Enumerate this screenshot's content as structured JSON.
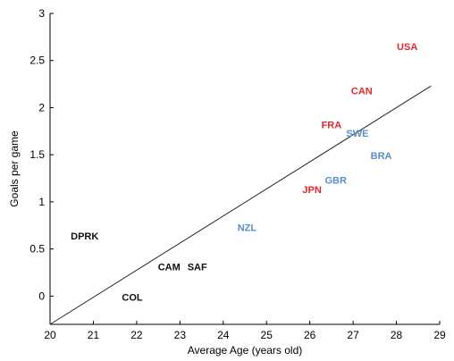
{
  "chart_data": {
    "type": "scatter",
    "title": "",
    "xlabel": "Average Age (years old)",
    "ylabel": "Goals per game",
    "xlim": [
      20,
      29
    ],
    "ylim": [
      -0.3,
      3
    ],
    "xticks": [
      20,
      21,
      22,
      23,
      24,
      25,
      26,
      27,
      28,
      29
    ],
    "yticks": [
      0,
      0.5,
      1,
      1.5,
      2,
      2.5,
      3
    ],
    "ytick_labels": [
      "0",
      "0.5",
      "1",
      "1.5",
      "2",
      "2.5",
      "3"
    ],
    "grid": false,
    "colors": {
      "red": "#e3262a",
      "blue": "#5b8ec6",
      "black": "#111111"
    },
    "points": [
      {
        "label": "USA",
        "x": 28.25,
        "y": 2.65,
        "color": "red"
      },
      {
        "label": "CAN",
        "x": 27.2,
        "y": 2.18,
        "color": "red"
      },
      {
        "label": "FRA",
        "x": 26.5,
        "y": 1.82,
        "color": "red"
      },
      {
        "label": "SWE",
        "x": 27.1,
        "y": 1.73,
        "color": "blue"
      },
      {
        "label": "BRA",
        "x": 27.65,
        "y": 1.49,
        "color": "blue"
      },
      {
        "label": "GBR",
        "x": 26.6,
        "y": 1.23,
        "color": "blue"
      },
      {
        "label": "JPN",
        "x": 26.05,
        "y": 1.13,
        "color": "red"
      },
      {
        "label": "NZL",
        "x": 24.55,
        "y": 0.73,
        "color": "blue"
      },
      {
        "label": "DPRK",
        "x": 20.8,
        "y": 0.64,
        "color": "black"
      },
      {
        "label": "CAM",
        "x": 22.75,
        "y": 0.31,
        "color": "black"
      },
      {
        "label": "SAF",
        "x": 23.4,
        "y": 0.31,
        "color": "black"
      },
      {
        "label": "COL",
        "x": 21.9,
        "y": -0.01,
        "color": "black"
      }
    ],
    "fit_line": {
      "x": [
        20,
        28.8
      ],
      "y": [
        -0.3,
        2.23
      ]
    }
  }
}
